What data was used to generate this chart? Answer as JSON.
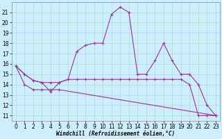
{
  "xlabel": "Windchill (Refroidissement éolien,°C)",
  "background_color": "#cceeff",
  "grid_color": "#aaddcc",
  "line_color": "#993399",
  "xlim": [
    -0.5,
    23.5
  ],
  "ylim": [
    10.5,
    22.0
  ],
  "yticks": [
    11,
    12,
    13,
    14,
    15,
    16,
    17,
    18,
    19,
    20,
    21
  ],
  "xticks": [
    0,
    1,
    2,
    3,
    4,
    5,
    6,
    7,
    8,
    9,
    10,
    11,
    12,
    13,
    14,
    15,
    16,
    17,
    18,
    19,
    20,
    21,
    22,
    23
  ],
  "line1_x": [
    0,
    1,
    2,
    3,
    4,
    5,
    6,
    7,
    8,
    9,
    10,
    11,
    12,
    13,
    14,
    15,
    16,
    17,
    18,
    19,
    20,
    21,
    22,
    23
  ],
  "line1_y": [
    15.8,
    15.0,
    14.4,
    14.2,
    14.2,
    14.2,
    14.5,
    17.2,
    17.8,
    18.0,
    18.0,
    20.8,
    21.5,
    21.0,
    15.0,
    15.0,
    16.3,
    18.0,
    16.3,
    15.0,
    15.0,
    14.0,
    12.0,
    11.0
  ],
  "line2_x": [
    0,
    1,
    2,
    3,
    4,
    5,
    6,
    7,
    8,
    9,
    10,
    11,
    12,
    13,
    14,
    15,
    16,
    17,
    18,
    19,
    20,
    21,
    22,
    23
  ],
  "line2_y": [
    15.8,
    15.0,
    14.4,
    14.2,
    13.3,
    14.2,
    14.5,
    14.5,
    14.5,
    14.5,
    14.5,
    14.5,
    14.5,
    14.5,
    14.5,
    14.5,
    14.5,
    14.5,
    14.5,
    14.5,
    14.0,
    11.0,
    11.0,
    11.0
  ],
  "line3_x": [
    0,
    1,
    2,
    3,
    4,
    5,
    23
  ],
  "line3_y": [
    15.8,
    14.0,
    13.5,
    13.5,
    13.5,
    13.5,
    11.0
  ],
  "marker": "+",
  "markersize": 3,
  "linewidth": 0.8,
  "tick_fontsize": 5.5
}
